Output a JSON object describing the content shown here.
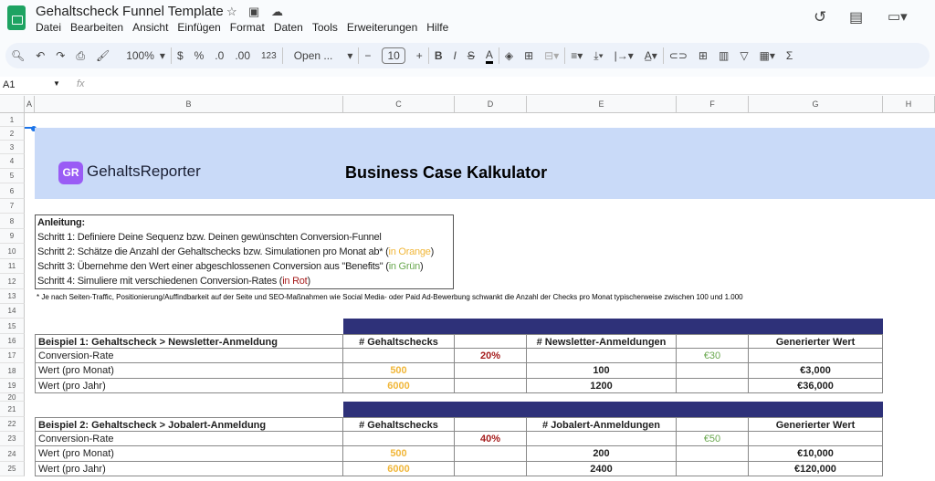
{
  "app": {
    "title": "Gehaltscheck Funnel Template",
    "menu": [
      "Datei",
      "Bearbeiten",
      "Ansicht",
      "Einfügen",
      "Format",
      "Daten",
      "Tools",
      "Erweiterungen",
      "Hilfe"
    ]
  },
  "toolbar": {
    "zoom": "100%",
    "currency": "$",
    "percent": "%",
    "dec_less": ".0",
    "dec_more": ".00",
    "format_more": "123",
    "font": "Open ...",
    "font_size": "10",
    "bold": "B",
    "italic": "I",
    "strike": "S",
    "text_color": "A",
    "sum": "Σ"
  },
  "formula_bar": {
    "cell_ref": "A1",
    "fx": "fx",
    "value": ""
  },
  "columns": [
    "A",
    "B",
    "C",
    "D",
    "E",
    "F",
    "G",
    "H"
  ],
  "rows": [
    "1",
    "2",
    "3",
    "4",
    "5",
    "6",
    "7",
    "8",
    "9",
    "10",
    "11",
    "12",
    "13",
    "14",
    "15",
    "16",
    "17",
    "18",
    "19",
    "20",
    "21",
    "22",
    "23",
    "24",
    "25"
  ],
  "banner": {
    "logo_mark": "GR",
    "logo_name": "GehaltsReporter",
    "title": "Business Case Kalkulator",
    "color": "#c9daf8"
  },
  "instructions": {
    "heading": "Anleitung:",
    "step1": "Schritt 1: Definiere Deine Sequenz bzw. Deinen gewünschten Conversion-Funnel",
    "step2": "Schritt 2: Schätze die Anzahl der Gehaltschecks bzw. Simulationen pro Monat ab* (",
    "step2_hl": "in Orange",
    "step3": "Schritt 3: Übernehme den Wert einer abgeschlossenen Conversion aus \"Benefits\" (",
    "step3_hl": "in Grün",
    "step4": "Schritt 4: Simuliere mit verschiedenen Conversion-Rates (",
    "step4_hl": "in Rot",
    "close": ")"
  },
  "footnote": "* Je nach Seiten-Traffic, Positionierung/Auffindbarkeit auf der Seite und SEO-Maßnahmen wie Social Media- oder Paid Ad-Bewerbung schwankt die Anzahl der Checks pro Monat typischerweise zwischen 100 und 1.000",
  "tables": [
    {
      "rows": [
        [
          "Beispiel 1: Gehaltscheck > Newsletter-Anmeldung",
          "# Gehaltschecks",
          "",
          "# Newsletter-Anmeldungen",
          "",
          "Generierter Wert"
        ],
        [
          "Conversion-Rate",
          "",
          "20%",
          "",
          "€30",
          ""
        ],
        [
          "Wert (pro Monat)",
          "500",
          "",
          "100",
          "",
          "€3,000"
        ],
        [
          "Wert (pro Jahr)",
          "6000",
          "",
          "1200",
          "",
          "€36,000"
        ]
      ]
    },
    {
      "rows": [
        [
          "Beispiel 2: Gehaltscheck > Jobalert-Anmeldung",
          "# Gehaltschecks",
          "",
          "# Jobalert-Anmeldungen",
          "",
          "Generierter Wert"
        ],
        [
          "Conversion-Rate",
          "",
          "40%",
          "",
          "€50",
          ""
        ],
        [
          "Wert (pro Monat)",
          "500",
          "",
          "200",
          "",
          "€10,000"
        ],
        [
          "Wert (pro Jahr)",
          "6000",
          "",
          "2400",
          "",
          "€120,000"
        ]
      ]
    }
  ],
  "colors": {
    "band": "#2e3179",
    "input_orange": "#f1b73a",
    "value_green": "#6aa84f",
    "rate_red": "#a61c1c"
  }
}
